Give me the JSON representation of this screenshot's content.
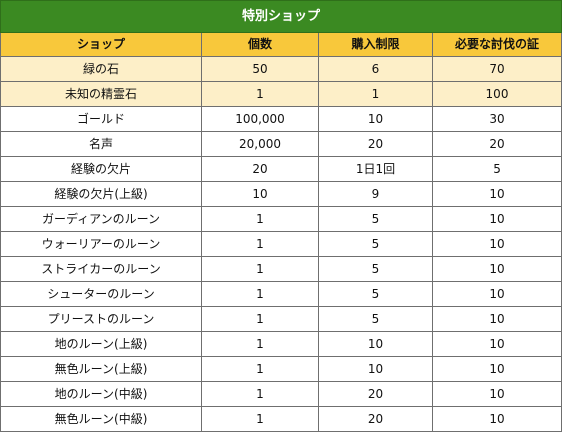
{
  "title": "特別ショップ",
  "headers": [
    "ショップ",
    "個数",
    "購入制限",
    "必要な討伐の証"
  ],
  "rows": [
    [
      "緑の石",
      "50",
      "6",
      "70"
    ],
    [
      "未知の精霊石",
      "1",
      "1",
      "100"
    ],
    [
      "ゴールド",
      "100,000",
      "10",
      "30"
    ],
    [
      "名声",
      "20,000",
      "20",
      "20"
    ],
    [
      "経験の欠片",
      "20",
      "1日1回",
      "5"
    ],
    [
      "経験の欠片(上級)",
      "10",
      "9",
      "10"
    ],
    [
      "ガーディアンのルーン",
      "1",
      "5",
      "10"
    ],
    [
      "ウォーリアーのルーン",
      "1",
      "5",
      "10"
    ],
    [
      "ストライカーのルーン",
      "1",
      "5",
      "10"
    ],
    [
      "シューターのルーン",
      "1",
      "5",
      "10"
    ],
    [
      "プリーストのルーン",
      "1",
      "5",
      "10"
    ],
    [
      "地のルーン(上級)",
      "1",
      "10",
      "10"
    ],
    [
      "無色ルーン(上級)",
      "1",
      "10",
      "10"
    ],
    [
      "地のルーン(中級)",
      "1",
      "20",
      "10"
    ],
    [
      "無色ルーン(中級)",
      "1",
      "20",
      "10"
    ]
  ],
  "colors": {
    "title_bg": "#3b8a22",
    "header_bg": "#f8c83b",
    "highlight_bg": "#fdefc8"
  }
}
